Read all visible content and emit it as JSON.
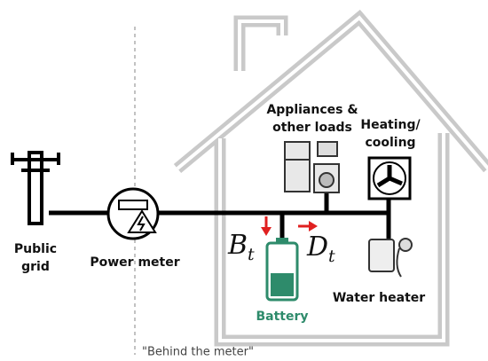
{
  "public_grid": {
    "lines": [
      "Public",
      "grid"
    ]
  },
  "power_meter": "Power meter",
  "appliances": {
    "lines": [
      "Appliances &",
      "other loads"
    ]
  },
  "heating": {
    "lines": [
      "Heating/",
      "cooling"
    ]
  },
  "water_heater": "Water heater",
  "battery": "Battery",
  "battery_flow": {
    "symbol": "B",
    "subscript": "t"
  },
  "demand_flow": {
    "symbol": "D",
    "subscript": "t"
  },
  "boundary": "\"Behind the meter\""
}
